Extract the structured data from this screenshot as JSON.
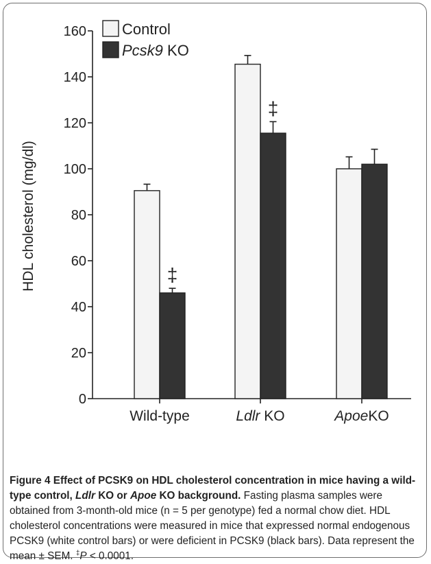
{
  "chart_data": {
    "type": "bar",
    "ylabel": "HDL cholesterol (mg/dl)",
    "ylim": [
      0,
      160
    ],
    "yticks": [
      "0",
      "20",
      "40",
      "60",
      "80",
      "100",
      "120",
      "140",
      "160"
    ],
    "grid": false,
    "legend_position": "top-left",
    "categories": [
      {
        "italic": "",
        "rest": "Wild-type"
      },
      {
        "italic": "Ldlr",
        "rest": " KO"
      },
      {
        "italic": "Apoe",
        "rest": "KO"
      }
    ],
    "series": [
      {
        "name": "Control",
        "italic": "",
        "rest": "Control",
        "color": "#f4f4f4",
        "values": [
          90.5,
          145.5,
          100
        ],
        "errors": [
          2.8,
          3.8,
          5.2
        ]
      },
      {
        "name": "Pcsk9 KO",
        "italic": "Pcsk9",
        "rest": " KO",
        "color": "#333333",
        "values": [
          46,
          115.5,
          102
        ],
        "errors": [
          2.0,
          5.0,
          6.5
        ]
      }
    ],
    "annotations": [
      {
        "text": "‡",
        "category_index": 0,
        "series_index": 1
      },
      {
        "text": "‡",
        "category_index": 1,
        "series_index": 1
      }
    ]
  },
  "caption": {
    "title": "Figure 4 Effect of PCSK9 on HDL cholesterol concentration in mice having a wild-type control, ",
    "title_italic_1": "Ldlr",
    "title_mid": " KO or ",
    "title_italic_2": "Apoe",
    "title_end": " KO background.",
    "body": " Fasting plasma samples were obtained from 3-month-old mice (n = 5 per genotype) fed a normal chow diet. HDL cholesterol concentrations were measured in mice that expressed normal endogenous PCSK9 (white control bars) or were deficient in PCSK9 (black bars). Data represent the mean ± SEM. ",
    "sup": "‡",
    "p_italic": "P",
    "p_rest": " < 0.0001."
  },
  "colors": {
    "frame": "#6e6e6e",
    "axis": "#222222"
  }
}
